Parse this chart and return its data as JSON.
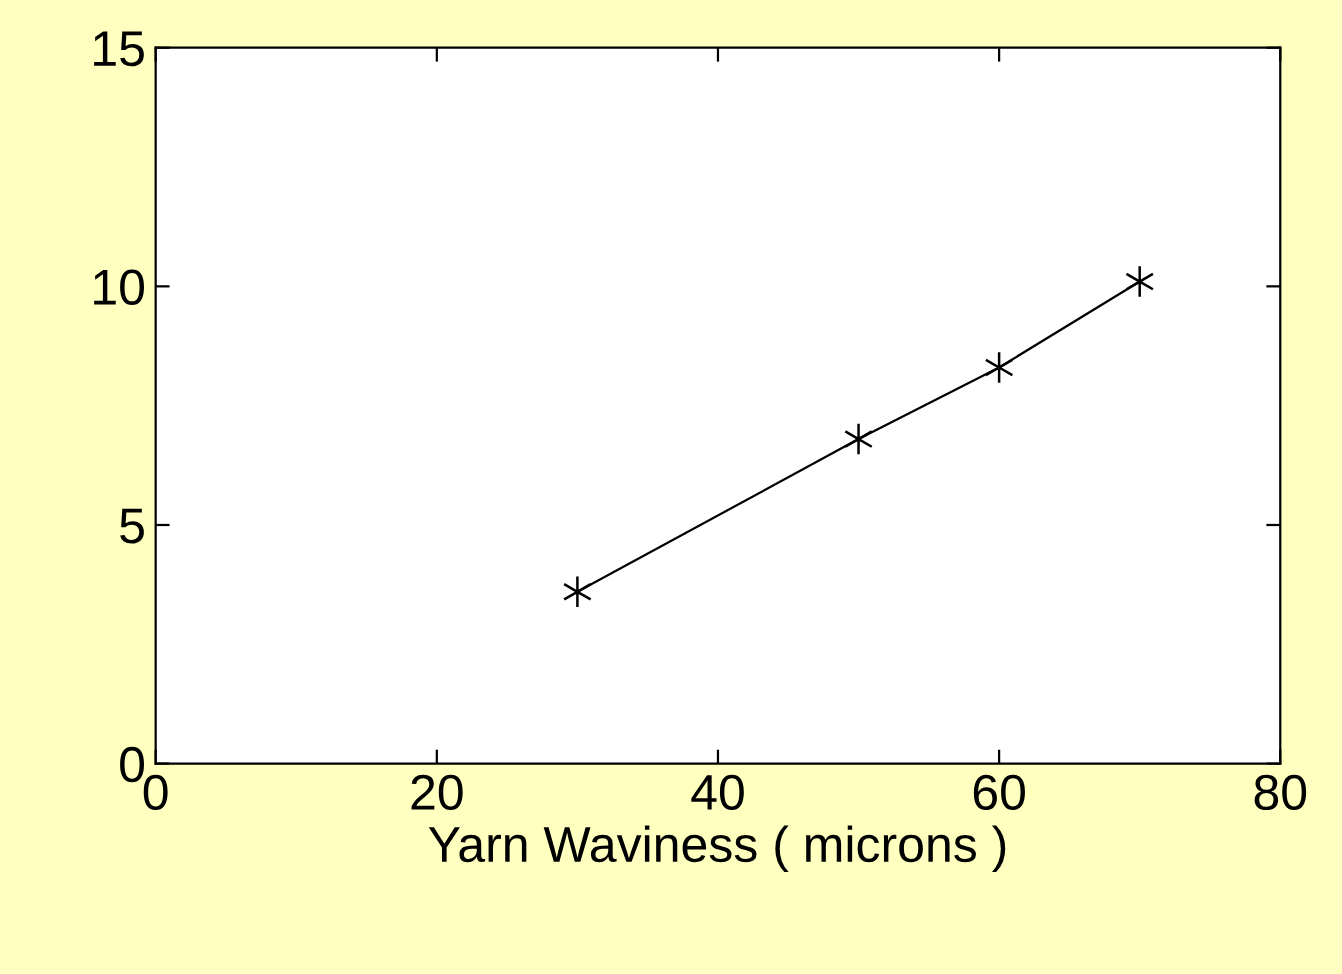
{
  "chart_data": {
    "type": "line",
    "xlabel": "Yarn Waviness ( microns )",
    "x": [
      30,
      50,
      60,
      70
    ],
    "series": [
      {
        "color": "#000000",
        "values": [
          3.6,
          6.8,
          8.3,
          10.1
        ]
      }
    ],
    "xlim": [
      0,
      80
    ],
    "xticks": [
      0,
      20,
      40,
      60,
      80
    ],
    "ylim": [
      0,
      15
    ],
    "yticks": [
      0,
      5,
      10,
      15
    ],
    "marker": "cross",
    "line_style": "solid",
    "grid": false,
    "legend": false
  }
}
